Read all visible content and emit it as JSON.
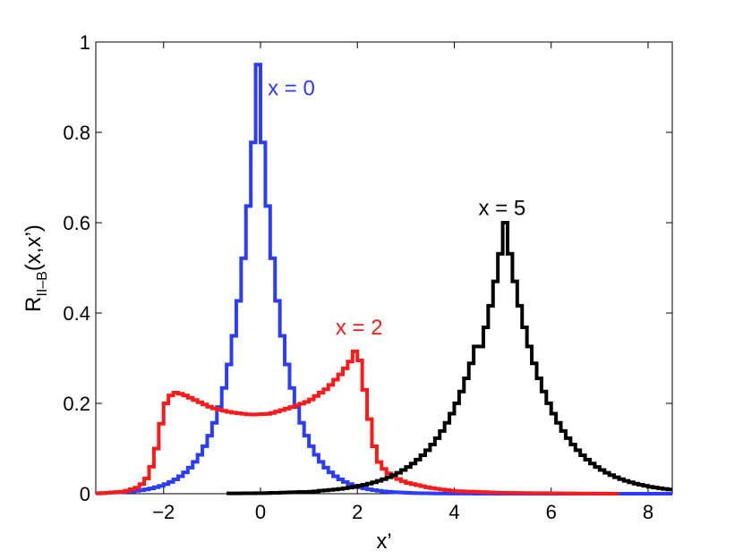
{
  "chart_data": {
    "type": "line",
    "xlabel": "x’",
    "ylabel_main": "R",
    "ylabel_sub": "II–B",
    "ylabel_tail": "(x,x’)",
    "xlim": [
      -3.4,
      8.5
    ],
    "ylim": [
      0,
      1
    ],
    "x_ticks": [
      -2,
      0,
      2,
      4,
      6,
      8
    ],
    "x_tick_labels": [
      "−2",
      "0",
      "2",
      "4",
      "6",
      "8"
    ],
    "y_ticks": [
      0,
      0.2,
      0.4,
      0.6,
      0.8,
      1
    ],
    "y_tick_labels": [
      "0",
      "0.2",
      "0.4",
      "0.6",
      "0.8",
      "1"
    ],
    "grid": false,
    "step": 0.1,
    "series": [
      {
        "name": "x = 0",
        "color": "#2b3cff",
        "model": "laplace",
        "center": 0,
        "peak": 0.95,
        "scale": 0.5,
        "x_range": [
          -3.4,
          8.5
        ]
      },
      {
        "name": "x = 2",
        "color": "#ff1a1a",
        "model": "double_edge",
        "points": [
          [
            -3.4,
            0.0
          ],
          [
            -2.8,
            0.005
          ],
          [
            -2.5,
            0.015
          ],
          [
            -2.3,
            0.04
          ],
          [
            -2.2,
            0.08
          ],
          [
            -2.1,
            0.12
          ],
          [
            -2.0,
            0.19
          ],
          [
            -1.9,
            0.21
          ],
          [
            -1.8,
            0.225
          ],
          [
            -1.6,
            0.22
          ],
          [
            -1.3,
            0.205
          ],
          [
            -1.0,
            0.19
          ],
          [
            -0.6,
            0.18
          ],
          [
            -0.2,
            0.175
          ],
          [
            0.2,
            0.177
          ],
          [
            0.6,
            0.19
          ],
          [
            1.0,
            0.205
          ],
          [
            1.4,
            0.235
          ],
          [
            1.7,
            0.27
          ],
          [
            1.9,
            0.3
          ],
          [
            2.0,
            0.33
          ],
          [
            2.1,
            0.26
          ],
          [
            2.2,
            0.2
          ],
          [
            2.3,
            0.13
          ],
          [
            2.4,
            0.08
          ],
          [
            2.5,
            0.06
          ],
          [
            2.7,
            0.04
          ],
          [
            3.0,
            0.025
          ],
          [
            3.5,
            0.013
          ],
          [
            4.0,
            0.006
          ],
          [
            5.0,
            0.002
          ],
          [
            6.0,
            0.001
          ],
          [
            7.4,
            0.0
          ]
        ]
      },
      {
        "name": "x = 5",
        "color": "#000000",
        "model": "laplace",
        "center": 5,
        "peak": 0.6,
        "scale": 0.82,
        "x_range": [
          -0.7,
          8.5
        ]
      }
    ],
    "annotations": [
      {
        "text": "x = 0",
        "x": 0.15,
        "y": 0.9,
        "color": "#2b3cff"
      },
      {
        "text": "x = 2",
        "x": 1.55,
        "y": 0.37,
        "color": "#ff1a1a"
      },
      {
        "text": "x = 5",
        "x": 4.5,
        "y": 0.635,
        "color": "#000000"
      }
    ]
  }
}
